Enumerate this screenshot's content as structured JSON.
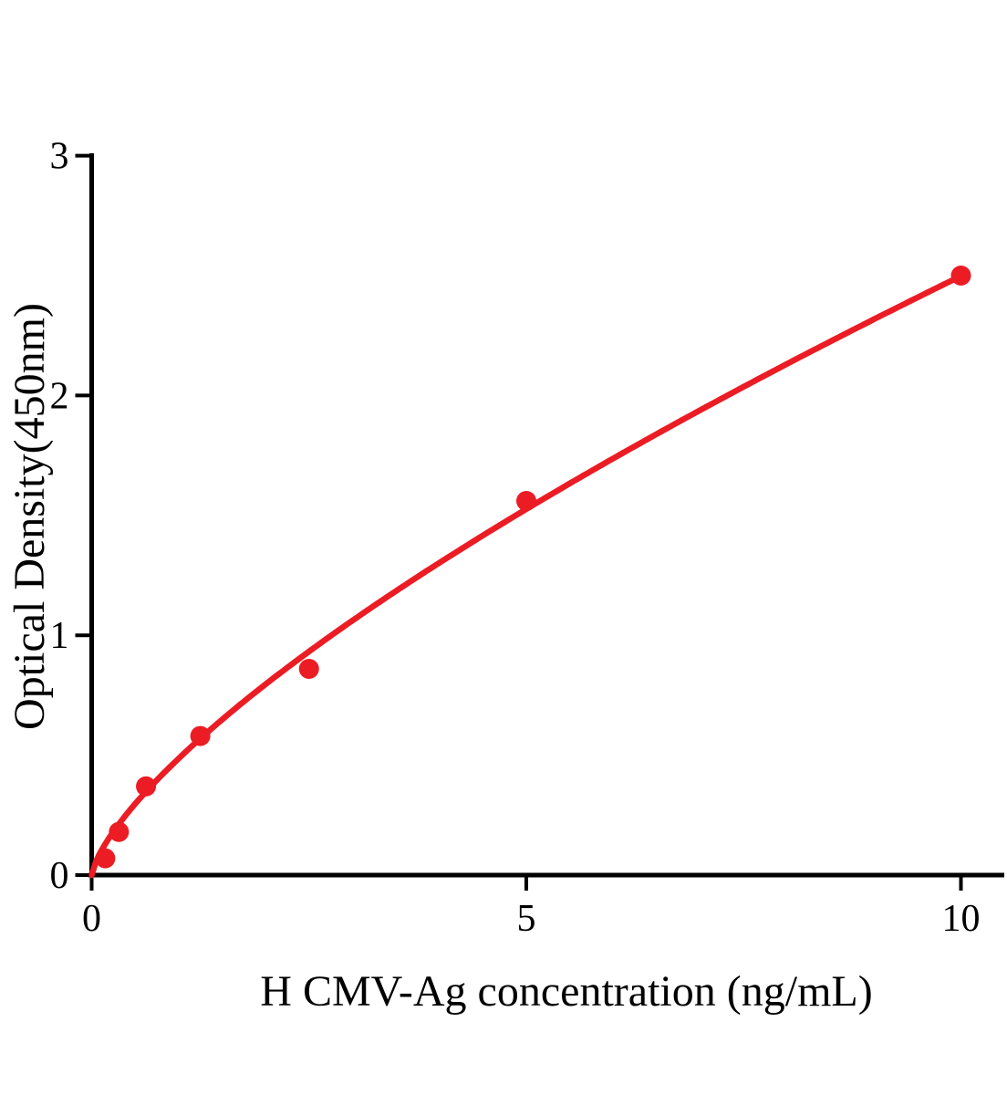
{
  "figure": {
    "background": "#ffffff",
    "description": "ELISA standard curve plot"
  },
  "chart_data": {
    "type": "scatter",
    "title": "",
    "xlabel": "H CMV-Ag concentration (ng/mL)",
    "ylabel": "Optical Density(450nm)",
    "xlim": [
      0,
      10.5
    ],
    "ylim": [
      0,
      3
    ],
    "xticks": [
      0,
      5,
      10
    ],
    "yticks": [
      0,
      1,
      2,
      3
    ],
    "grid": false,
    "legend": "none",
    "points": [
      {
        "x": 0.156,
        "y": 0.07
      },
      {
        "x": 0.313,
        "y": 0.18
      },
      {
        "x": 0.625,
        "y": 0.37
      },
      {
        "x": 1.25,
        "y": 0.58
      },
      {
        "x": 2.5,
        "y": 0.86
      },
      {
        "x": 5,
        "y": 1.56
      },
      {
        "x": 10,
        "y": 2.5
      }
    ],
    "fit_curve": {
      "type": "power",
      "equation": "OD = 0.486 * conc^0.711",
      "a": 0.486,
      "b": 0.711,
      "x_range": [
        0,
        10
      ]
    },
    "point_color": "#ec1c24",
    "line_color": "#ec1c24",
    "axis_color": "#000000"
  }
}
